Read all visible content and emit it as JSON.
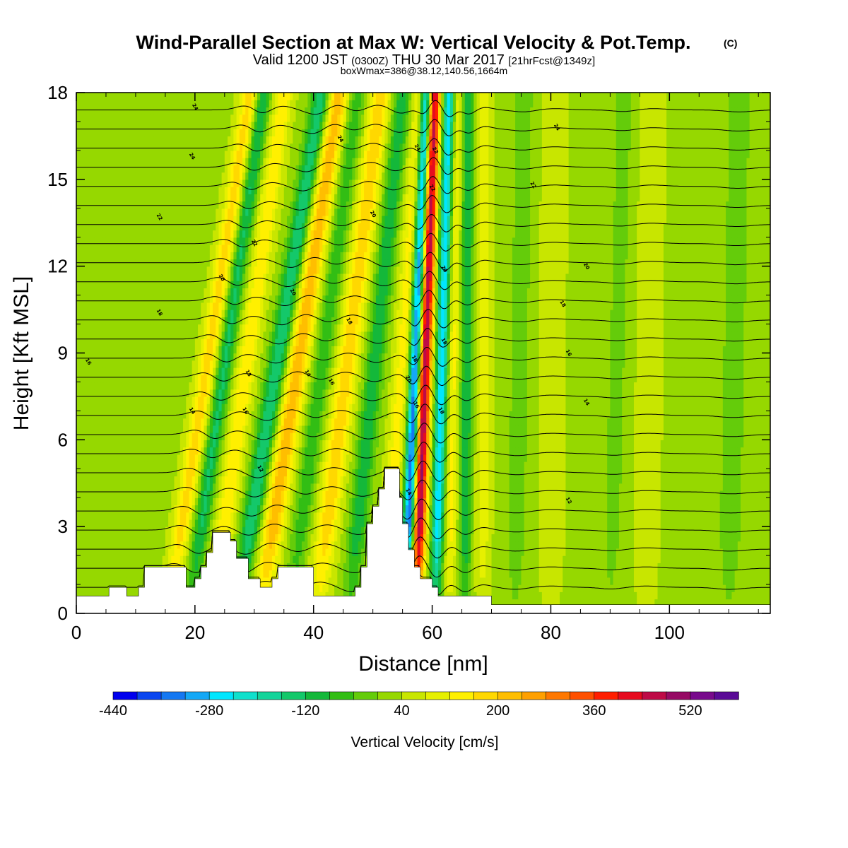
{
  "header": {
    "title": "Wind-Parallel Section at Max W: Vertical Velocity & Pot.Temp.",
    "copyright": "(C)",
    "valid_prefix": "Valid 1200 JST",
    "valid_utc": "(0300Z)",
    "valid_date": "THU 30 Mar 2017",
    "forecast_info": "[21hrFcst@1349z]",
    "box_info": "boxWmax=386@38.12,140.56,1664m"
  },
  "chart_data": {
    "type": "heatmap",
    "xlabel": "Distance [nm]",
    "ylabel": "Height [Kft MSL]",
    "xlim": [
      0,
      117
    ],
    "ylim": [
      0,
      18
    ],
    "x_ticks": [
      "0",
      "20",
      "40",
      "60",
      "80",
      "100"
    ],
    "x_tick_values": [
      0,
      20,
      40,
      60,
      80,
      100
    ],
    "y_ticks": [
      "0",
      "3",
      "6",
      "9",
      "12",
      "15",
      "18"
    ],
    "y_tick_values": [
      0,
      3,
      6,
      9,
      12,
      15,
      18
    ],
    "colorbar": {
      "label": "Vertical Velocity [cm/s]",
      "min": -440,
      "max": 600,
      "step": 40,
      "tick_labels": [
        "-440",
        "-280",
        "-120",
        "40",
        "200",
        "360",
        "520"
      ],
      "tick_values": [
        -440,
        -280,
        -120,
        40,
        200,
        360,
        520
      ],
      "colors": [
        "#0000ee",
        "#0a46f0",
        "#1478f2",
        "#14a8f6",
        "#00e6ff",
        "#10e0cc",
        "#14d49a",
        "#14c86a",
        "#14b83a",
        "#32be14",
        "#64cc0a",
        "#96d800",
        "#c8e600",
        "#e6f000",
        "#fff000",
        "#ffd800",
        "#ffbe00",
        "#ffa000",
        "#ff7800",
        "#ff5000",
        "#ff1e00",
        "#e60a1e",
        "#be0a46",
        "#960a64",
        "#780a8c",
        "#5a0a96"
      ]
    },
    "w_cores": [
      {
        "x0": 15.5,
        "lean": 4.6,
        "w": 1.5,
        "amp": 150
      },
      {
        "x0": 19.0,
        "lean": 4.2,
        "w": 1.3,
        "amp": -160
      },
      {
        "x0": 23.0,
        "lean": 4.0,
        "w": 1.6,
        "amp": 120
      },
      {
        "x0": 27.0,
        "lean": 4.8,
        "w": 1.6,
        "amp": -190
      },
      {
        "x0": 31.0,
        "lean": 4.4,
        "w": 1.8,
        "amp": 200
      },
      {
        "x0": 36.0,
        "lean": 3.8,
        "w": 1.5,
        "amp": -100
      },
      {
        "x0": 40.5,
        "lean": 3.6,
        "w": 1.8,
        "amp": 160
      },
      {
        "x0": 46.0,
        "lean": 3.0,
        "w": 1.5,
        "amp": -140
      },
      {
        "x0": 52.0,
        "lean": 2.0,
        "w": 1.4,
        "amp": 110
      },
      {
        "x0": 55.5,
        "lean": 1.2,
        "w": 1.0,
        "amp": -420
      },
      {
        "x0": 57.3,
        "lean": 1.0,
        "w": 1.1,
        "amp": 480
      },
      {
        "x0": 60.5,
        "lean": 0.8,
        "w": 1.0,
        "amp": -300
      },
      {
        "x0": 63.0,
        "lean": 0.4,
        "w": 1.0,
        "amp": 100
      },
      {
        "x0": 65.5,
        "lean": 0.2,
        "w": 1.0,
        "amp": -150
      },
      {
        "x0": 68.5,
        "lean": 0.1,
        "w": 1.2,
        "amp": 80
      },
      {
        "x0": 74.0,
        "lean": 0.5,
        "w": 1.6,
        "amp": -60
      },
      {
        "x0": 80.0,
        "lean": 0.2,
        "w": 2.0,
        "amp": 40
      },
      {
        "x0": 90.0,
        "lean": 0.8,
        "w": 1.6,
        "amp": -50
      },
      {
        "x0": 96.0,
        "lean": 0.4,
        "w": 2.0,
        "amp": 40
      },
      {
        "x0": 110.0,
        "lean": 0.6,
        "w": 2.0,
        "amp": -60
      }
    ],
    "terrain_kft": [
      [
        0,
        0.6
      ],
      [
        5.5,
        0.6
      ],
      [
        5.5,
        0.9
      ],
      [
        8.5,
        0.9
      ],
      [
        8.5,
        0.6
      ],
      [
        10.5,
        0.6
      ],
      [
        10.5,
        0.9
      ],
      [
        11.5,
        0.9
      ],
      [
        11.5,
        1.6
      ],
      [
        18.5,
        1.6
      ],
      [
        18.5,
        0.9
      ],
      [
        20,
        0.9
      ],
      [
        20,
        1.2
      ],
      [
        21,
        1.2
      ],
      [
        21,
        1.6
      ],
      [
        22,
        1.6
      ],
      [
        22,
        2.1
      ],
      [
        23,
        2.1
      ],
      [
        23,
        2.8
      ],
      [
        26,
        2.8
      ],
      [
        26,
        2.5
      ],
      [
        27,
        2.5
      ],
      [
        27,
        1.9
      ],
      [
        29,
        1.9
      ],
      [
        29,
        1.2
      ],
      [
        31,
        1.2
      ],
      [
        31,
        0.9
      ],
      [
        33,
        0.9
      ],
      [
        33,
        1.2
      ],
      [
        34,
        1.2
      ],
      [
        34,
        1.6
      ],
      [
        40,
        1.6
      ],
      [
        40,
        0.6
      ],
      [
        47,
        0.6
      ],
      [
        47,
        0.9
      ],
      [
        48,
        0.9
      ],
      [
        48,
        1.6
      ],
      [
        49,
        1.6
      ],
      [
        49,
        3.1
      ],
      [
        50,
        3.1
      ],
      [
        50,
        3.7
      ],
      [
        51,
        3.7
      ],
      [
        51,
        4.3
      ],
      [
        52,
        4.3
      ],
      [
        52,
        5.0
      ],
      [
        54.5,
        5.0
      ],
      [
        54.5,
        4.0
      ],
      [
        55,
        4.0
      ],
      [
        55,
        3.1
      ],
      [
        56,
        3.1
      ],
      [
        56,
        2.2
      ],
      [
        57,
        2.2
      ],
      [
        57,
        1.6
      ],
      [
        58,
        1.6
      ],
      [
        58,
        1.2
      ],
      [
        60,
        1.2
      ],
      [
        60,
        0.9
      ],
      [
        61,
        0.9
      ],
      [
        61,
        0.6
      ],
      [
        70,
        0.6
      ],
      [
        70,
        0.3
      ],
      [
        117,
        0.3
      ]
    ],
    "theta_levels": [
      12,
      14,
      16,
      18,
      20,
      22,
      24
    ],
    "theta_labels": [
      {
        "text": "12",
        "x": 31.0,
        "y": 5.0
      },
      {
        "text": "12",
        "x": 83.0,
        "y": 3.9
      },
      {
        "text": "14",
        "x": 19.5,
        "y": 7.0
      },
      {
        "text": "14",
        "x": 39.0,
        "y": 8.3
      },
      {
        "text": "14",
        "x": 56.0,
        "y": 4.2
      },
      {
        "text": "14",
        "x": 86.0,
        "y": 7.3
      },
      {
        "text": "16",
        "x": 2.0,
        "y": 8.7
      },
      {
        "text": "16",
        "x": 28.5,
        "y": 7.0
      },
      {
        "text": "16",
        "x": 43.0,
        "y": 8.0
      },
      {
        "text": "16",
        "x": 57.3,
        "y": 7.2
      },
      {
        "text": "16",
        "x": 83.0,
        "y": 9.0
      },
      {
        "text": "18",
        "x": 14.0,
        "y": 10.4
      },
      {
        "text": "18",
        "x": 29.0,
        "y": 8.3
      },
      {
        "text": "18",
        "x": 46.0,
        "y": 10.1
      },
      {
        "text": "18",
        "x": 57.0,
        "y": 8.8
      },
      {
        "text": "18",
        "x": 62.0,
        "y": 9.4
      },
      {
        "text": "18",
        "x": 82.0,
        "y": 10.7
      },
      {
        "text": "18",
        "x": 61.5,
        "y": 7.0
      },
      {
        "text": "20",
        "x": 24.5,
        "y": 11.6
      },
      {
        "text": "20",
        "x": 36.5,
        "y": 11.1
      },
      {
        "text": "20",
        "x": 56.0,
        "y": 8.1
      },
      {
        "text": "20",
        "x": 86.0,
        "y": 12.0
      },
      {
        "text": "20",
        "x": 62.0,
        "y": 11.9
      },
      {
        "text": "20",
        "x": 50.0,
        "y": 13.8
      },
      {
        "text": "22",
        "x": 14.0,
        "y": 13.7
      },
      {
        "text": "22",
        "x": 30.0,
        "y": 12.8
      },
      {
        "text": "22",
        "x": 60.0,
        "y": 14.7
      },
      {
        "text": "22",
        "x": 77.0,
        "y": 14.8
      },
      {
        "text": "22",
        "x": 60.5,
        "y": 16.0
      },
      {
        "text": "24",
        "x": 19.5,
        "y": 15.8
      },
      {
        "text": "24",
        "x": 44.5,
        "y": 16.4
      },
      {
        "text": "24",
        "x": 57.5,
        "y": 16.1
      },
      {
        "text": "24",
        "x": 81.0,
        "y": 16.8
      },
      {
        "text": "24",
        "x": 20.0,
        "y": 17.5
      }
    ]
  }
}
